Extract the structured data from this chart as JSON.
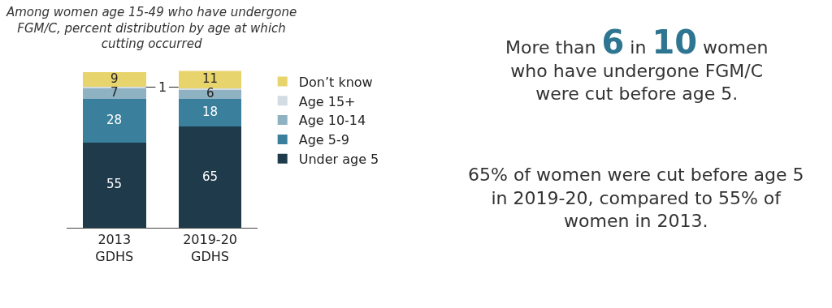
{
  "chart_data": {
    "type": "bar",
    "stacked": true,
    "title": "Among women age 15-49 who have undergone FGM/C, percent distribution by age at which cutting occurred",
    "categories": [
      "2013 GDHS",
      "2019-20 GDHS"
    ],
    "series": [
      {
        "name": "Under age 5",
        "color": "#1e3a4b",
        "values": [
          55,
          65
        ],
        "value_labels": [
          "55",
          "65"
        ]
      },
      {
        "name": "Age 5-9",
        "color": "#3a7f9c",
        "values": [
          28,
          18
        ],
        "value_labels": [
          "28",
          "18"
        ]
      },
      {
        "name": "Age 10-14",
        "color": "#8fb2c3",
        "values": [
          7,
          6
        ],
        "value_labels": [
          "7",
          "6"
        ]
      },
      {
        "name": "Age 15+",
        "color": "#d3dce2",
        "values": [
          1,
          1
        ],
        "value_labels": [
          "1",
          null
        ]
      },
      {
        "name": "Don’t know",
        "color": "#e8d46c",
        "values": [
          9,
          11
        ],
        "value_labels": [
          "9",
          "11"
        ]
      }
    ],
    "ylim": [
      0,
      101
    ],
    "tick_labels": "x",
    "legend": "right",
    "annotations": [
      "More than 6 in 10 women who have undergone FGM/C were cut before age 5.",
      "65% of women were cut before age 5 in 2019-20, compared to 55% of women in 2013."
    ]
  }
}
